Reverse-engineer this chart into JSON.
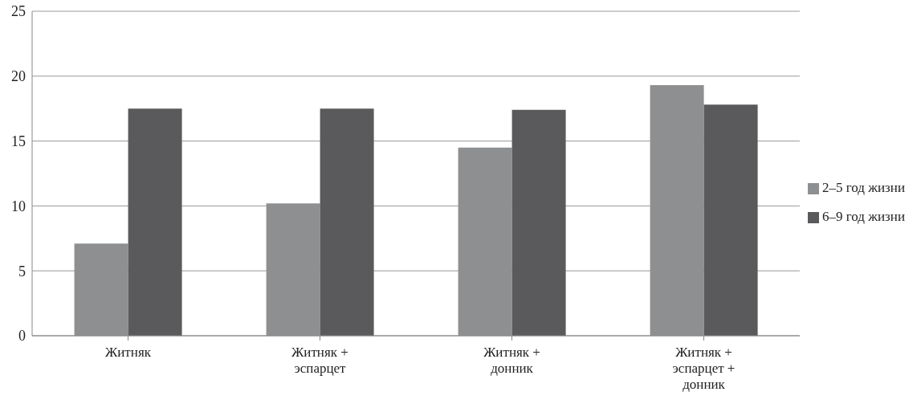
{
  "chart_data": {
    "type": "bar",
    "categories": [
      "Житняк",
      "Житняк + эспарцет",
      "Житняк + донник",
      "Житняк + эспарцет + донник"
    ],
    "series": [
      {
        "name": "2–5 год жизни",
        "color": "#8e8f91",
        "values": [
          7.1,
          10.2,
          14.5,
          19.3
        ]
      },
      {
        "name": "6–9 год жизни",
        "color": "#5a5a5c",
        "values": [
          17.5,
          17.5,
          17.4,
          17.8
        ]
      }
    ],
    "ylim": [
      0,
      25
    ],
    "yticks": [
      0,
      5,
      10,
      15,
      20,
      25
    ],
    "grid": "y",
    "legend": "right"
  }
}
